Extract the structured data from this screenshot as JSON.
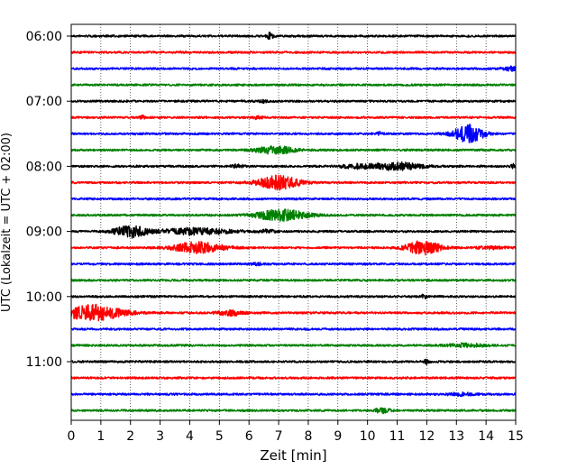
{
  "chart_data": {
    "type": "line",
    "title": "",
    "xlabel": "Zeit  [min]",
    "ylabel": "UTC (Lokalzeit = UTC + 02:00)",
    "xlim": [
      0,
      15
    ],
    "x_ticks": [
      "0",
      "1",
      "2",
      "3",
      "4",
      "5",
      "6",
      "7",
      "8",
      "9",
      "10",
      "11",
      "12",
      "13",
      "14",
      "15"
    ],
    "y_ticks": [
      "06:00",
      "07:00",
      "08:00",
      "09:00",
      "10:00",
      "11:00"
    ],
    "grid": {
      "x": "dotted-vertical",
      "y": false
    },
    "legend": "none",
    "trace_interval_minutes": 15,
    "color_cycle": [
      "#000000",
      "#ff0000",
      "#0000ff",
      "#008000"
    ],
    "traces": [
      {
        "start": "06:00",
        "events": [
          {
            "t": 6.7,
            "amp": 0.8,
            "dur": 0.15
          }
        ]
      },
      {
        "start": "06:15",
        "events": []
      },
      {
        "start": "06:30",
        "events": [
          {
            "t": 14.8,
            "amp": 0.5,
            "dur": 0.3
          }
        ]
      },
      {
        "start": "06:45",
        "events": []
      },
      {
        "start": "07:00",
        "events": [
          {
            "t": 6.5,
            "amp": 0.3,
            "dur": 0.2
          }
        ]
      },
      {
        "start": "07:15",
        "events": [
          {
            "t": 2.4,
            "amp": 0.4,
            "dur": 0.1
          },
          {
            "t": 6.3,
            "amp": 0.3,
            "dur": 0.2
          }
        ]
      },
      {
        "start": "07:30",
        "events": [
          {
            "t": 10.4,
            "amp": 0.4,
            "dur": 0.1
          },
          {
            "t": 13.4,
            "amp": 2.2,
            "dur": 0.6
          }
        ]
      },
      {
        "start": "07:45",
        "events": [
          {
            "t": 6.9,
            "amp": 0.9,
            "dur": 0.8
          }
        ]
      },
      {
        "start": "08:00",
        "events": [
          {
            "t": 5.6,
            "amp": 0.4,
            "dur": 0.3
          },
          {
            "t": 9.6,
            "amp": 0.5,
            "dur": 0.6
          },
          {
            "t": 11.0,
            "amp": 0.9,
            "dur": 1.0
          },
          {
            "t": 14.9,
            "amp": 0.5,
            "dur": 0.1
          }
        ]
      },
      {
        "start": "08:15",
        "events": [
          {
            "t": 7.0,
            "amp": 1.8,
            "dur": 0.8
          }
        ]
      },
      {
        "start": "08:30",
        "events": []
      },
      {
        "start": "08:45",
        "events": [
          {
            "t": 7.1,
            "amp": 1.4,
            "dur": 1.0
          }
        ]
      },
      {
        "start": "09:00",
        "events": [
          {
            "t": 2.0,
            "amp": 1.6,
            "dur": 0.6
          },
          {
            "t": 4.2,
            "amp": 0.8,
            "dur": 1.4
          },
          {
            "t": 6.6,
            "amp": 0.4,
            "dur": 0.3
          }
        ]
      },
      {
        "start": "09:15",
        "events": [
          {
            "t": 4.3,
            "amp": 1.4,
            "dur": 1.0
          },
          {
            "t": 11.9,
            "amp": 1.7,
            "dur": 0.7
          },
          {
            "t": 14.2,
            "amp": 0.3,
            "dur": 0.6
          }
        ]
      },
      {
        "start": "09:30",
        "events": [
          {
            "t": 6.3,
            "amp": 0.2,
            "dur": 0.3
          }
        ]
      },
      {
        "start": "09:45",
        "events": []
      },
      {
        "start": "10:00",
        "events": [
          {
            "t": 11.9,
            "amp": 0.5,
            "dur": 0.1
          }
        ]
      },
      {
        "start": "10:15",
        "events": [
          {
            "t": 0.7,
            "amp": 2.0,
            "dur": 1.2
          },
          {
            "t": 5.4,
            "amp": 0.7,
            "dur": 0.5
          }
        ]
      },
      {
        "start": "10:30",
        "events": []
      },
      {
        "start": "10:45",
        "events": [
          {
            "t": 13.3,
            "amp": 0.4,
            "dur": 0.8
          }
        ]
      },
      {
        "start": "11:00",
        "events": [
          {
            "t": 12.0,
            "amp": 0.6,
            "dur": 0.1
          }
        ]
      },
      {
        "start": "11:15",
        "events": []
      },
      {
        "start": "11:30",
        "events": [
          {
            "t": 13.2,
            "amp": 0.3,
            "dur": 0.6
          }
        ]
      },
      {
        "start": "11:45",
        "events": [
          {
            "t": 10.5,
            "amp": 0.6,
            "dur": 0.3
          }
        ]
      }
    ]
  }
}
